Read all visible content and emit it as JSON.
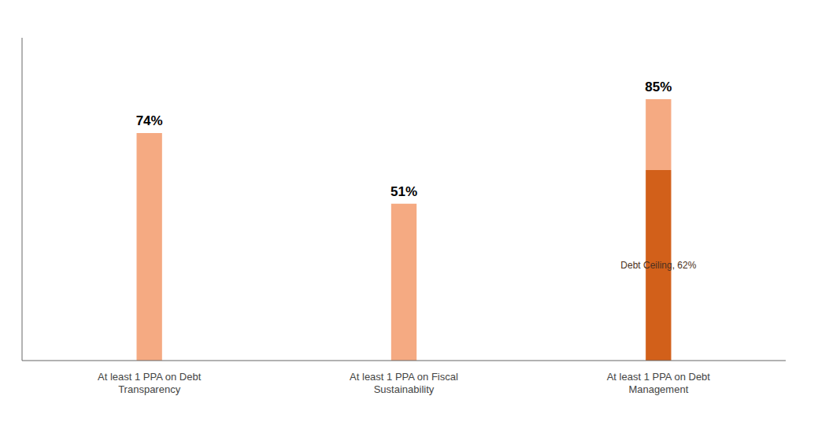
{
  "chart_data": {
    "type": "bar",
    "stacked": true,
    "categories": [
      "At least 1 PPA on Debt\nTransparency",
      "At least 1 PPA on Fiscal\nSustainability",
      "At least 1 PPA on Debt\nManagement"
    ],
    "series": [
      {
        "color": "#D2601A",
        "values": [
          0,
          0,
          62
        ]
      },
      {
        "color": "#F5AA82",
        "values": [
          74,
          51,
          23
        ]
      }
    ],
    "totals": [
      74,
      51,
      85
    ],
    "total_labels": [
      "74%",
      "51%",
      "85%"
    ],
    "annotations": [
      {
        "text": "Debt Ceiling, 62%",
        "x": "At least 1 PPA on Debt\nManagement",
        "y": 31,
        "color": "#4A3020"
      }
    ],
    "ylim": [
      0,
      105
    ],
    "grid": false,
    "tick_labels": "x"
  }
}
